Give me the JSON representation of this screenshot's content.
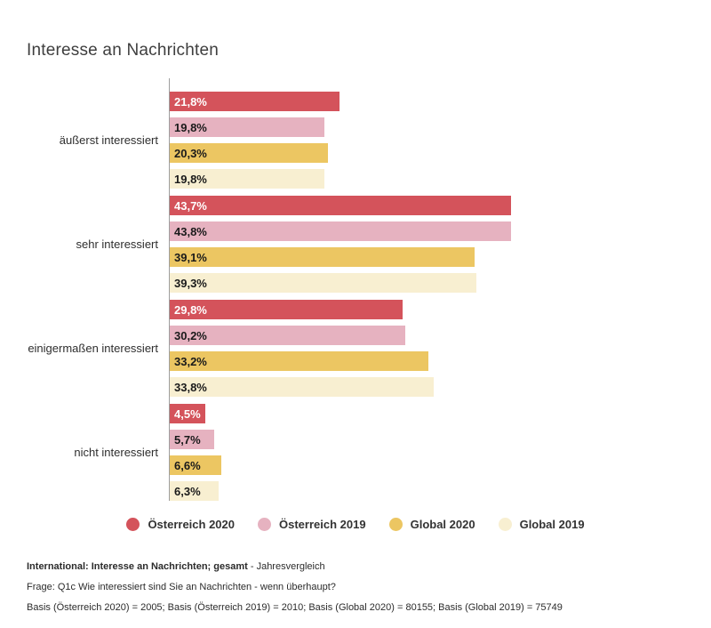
{
  "title": "Interesse an Nachrichten",
  "chart_data": {
    "type": "bar",
    "orientation": "horizontal",
    "title": "Interesse an Nachrichten",
    "categories": [
      "äußerst interessiert",
      "sehr interessiert",
      "einigermaßen interessiert",
      "nicht interessiert"
    ],
    "series": [
      {
        "name": "Österreich 2020",
        "color": "#d4535b",
        "label_color": "#ffffff",
        "values": [
          21.8,
          43.7,
          29.8,
          4.5
        ],
        "labels": [
          "21,8%",
          "43,7%",
          "29,8%",
          "4,5%"
        ]
      },
      {
        "name": "Österreich 2019",
        "color": "#e6b2c0",
        "label_color": "#1a1a1a",
        "values": [
          19.8,
          43.8,
          30.2,
          5.7
        ],
        "labels": [
          "19,8%",
          "43,8%",
          "30,2%",
          "5,7%"
        ]
      },
      {
        "name": "Global 2020",
        "color": "#ecc662",
        "label_color": "#1a1a1a",
        "values": [
          20.3,
          39.1,
          33.2,
          6.6
        ],
        "labels": [
          "20,3%",
          "39,1%",
          "33,2%",
          "6,6%"
        ]
      },
      {
        "name": "Global 2019",
        "color": "#f8efd1",
        "label_color": "#1a1a1a",
        "values": [
          19.8,
          39.3,
          33.8,
          6.3
        ],
        "labels": [
          "19,8%",
          "39,3%",
          "33,8%",
          "6,3%"
        ]
      }
    ],
    "xlim": [
      0,
      45
    ],
    "value_suffix": "%",
    "grid": false,
    "legend_position": "bottom-center",
    "axis_color": "#9e9e9e"
  },
  "footnotes": {
    "line1_bold": "International: Interesse an Nachrichten; gesamt",
    "line1_rest": " - Jahresvergleich",
    "line2": "Frage: Q1c Wie interessiert sind Sie an Nachrichten - wenn überhaupt?",
    "line3": "Basis (Österreich 2020) = 2005; Basis (Österreich 2019) = 2010; Basis (Global 2020) = 80155; Basis (Global 2019) = 75749"
  }
}
